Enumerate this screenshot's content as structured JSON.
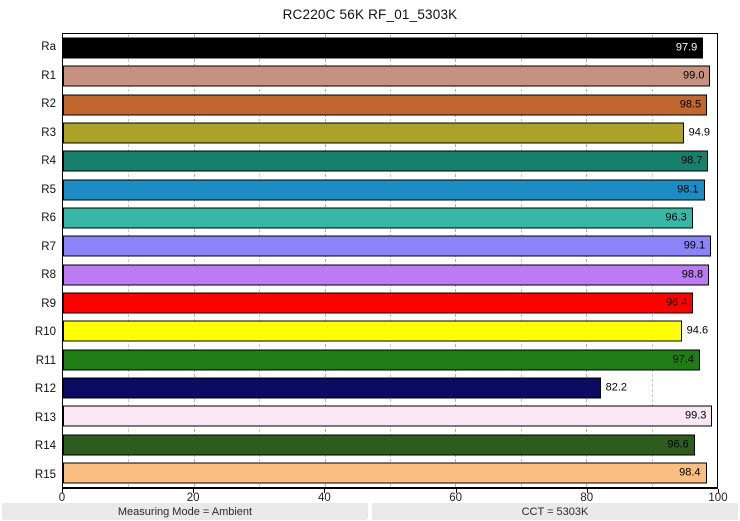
{
  "title": "RC220C 56K RF_01_5303K",
  "status": {
    "measuring_mode": "Measuring Mode = Ambient",
    "cct": "CCT = 5303K"
  },
  "chart_data": {
    "type": "bar",
    "orientation": "horizontal",
    "title": "RC220C 56K RF_01_5303K",
    "xlabel": "",
    "ylabel": "",
    "xlim": [
      0,
      100
    ],
    "x_ticks": [
      0,
      20,
      40,
      60,
      80,
      100
    ],
    "grid": "vertical dashed gridlines every 10 units",
    "legend": "none",
    "categories": [
      "Ra",
      "R1",
      "R2",
      "R3",
      "R4",
      "R5",
      "R6",
      "R7",
      "R8",
      "R9",
      "R10",
      "R11",
      "R12",
      "R13",
      "R14",
      "R15"
    ],
    "values": [
      97.9,
      99.0,
      98.5,
      94.9,
      98.7,
      98.1,
      96.3,
      99.1,
      98.8,
      96.4,
      94.6,
      97.4,
      82.2,
      99.3,
      96.6,
      98.4
    ],
    "bar_colors": [
      "#000000",
      "#c69180",
      "#c0662f",
      "#aca227",
      "#17806b",
      "#1d8bc4",
      "#39b7a6",
      "#8b83f7",
      "#bc7bf2",
      "#ff0000",
      "#ffff00",
      "#1e7d15",
      "#0b0b63",
      "#fae7f6",
      "#2e5c1e",
      "#f9be80"
    ],
    "value_label_inside": [
      true,
      true,
      true,
      false,
      true,
      true,
      true,
      true,
      true,
      true,
      false,
      true,
      false,
      true,
      true,
      true
    ],
    "value_label_colors": [
      "#ffffff",
      "#000000",
      "#000000",
      "#000000",
      "#000000",
      "#000000",
      "#000000",
      "#000000",
      "#000000",
      "#000000",
      "#000000",
      "#000000",
      "#000000",
      "#000000",
      "#000000",
      "#000000"
    ]
  }
}
